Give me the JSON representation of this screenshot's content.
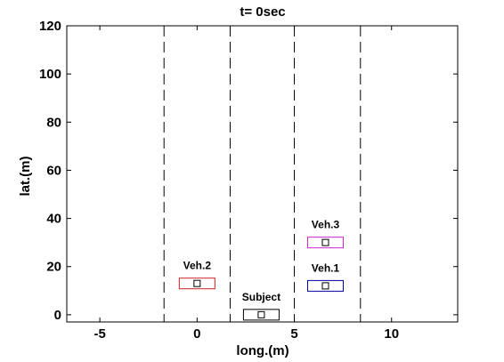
{
  "chart_data": {
    "type": "scatter",
    "title": "t= 0sec",
    "xlabel": "long.(m)",
    "ylabel": "lat.(m)",
    "xlim": [
      -6.7,
      13.4
    ],
    "ylim": [
      -3,
      120
    ],
    "xticks": [
      -5,
      0,
      5,
      10
    ],
    "yticks": [
      0,
      20,
      40,
      60,
      80,
      100,
      120
    ],
    "grid": false,
    "lane_boundaries_x": [
      -1.7,
      1.7,
      5.0,
      8.4
    ],
    "vehicles": [
      {
        "name": "Subject",
        "x": 3.3,
        "y": 0,
        "width": 1.8,
        "length": 4.5,
        "color": "#000000"
      },
      {
        "name": "Veh.1",
        "x": 6.6,
        "y": 12,
        "width": 1.8,
        "length": 4.5,
        "color": "#0000aa"
      },
      {
        "name": "Veh.2",
        "x": 0.0,
        "y": 13,
        "width": 1.8,
        "length": 4.5,
        "color": "#cc2222"
      },
      {
        "name": "Veh.3",
        "x": 6.6,
        "y": 30,
        "width": 1.8,
        "length": 4.5,
        "color": "#cc22cc"
      }
    ]
  }
}
